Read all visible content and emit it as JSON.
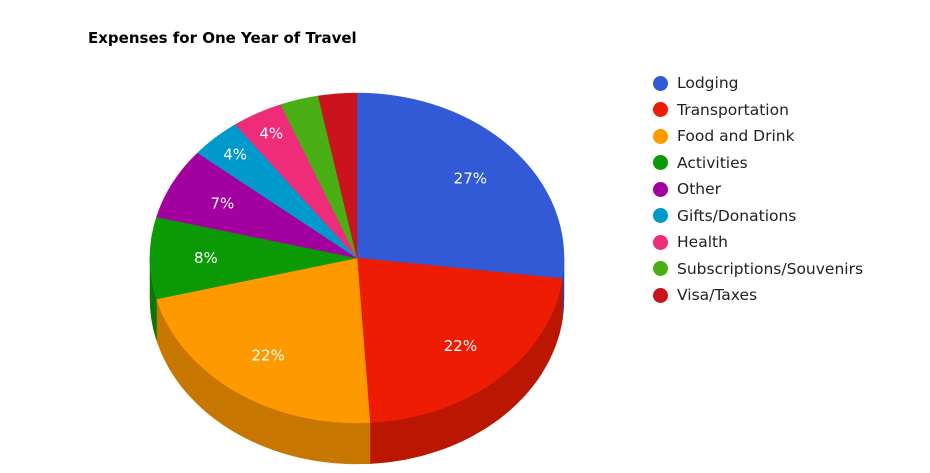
{
  "chart_data": {
    "type": "pie",
    "title": "Expenses for One Year of Travel",
    "legend_position": "right",
    "three_d": true,
    "slices": [
      {
        "label": "Lodging",
        "value": 27,
        "value_label": "27%",
        "color": "#3259D6"
      },
      {
        "label": "Transportation",
        "value": 22,
        "value_label": "22%",
        "color": "#EE1C03"
      },
      {
        "label": "Food and Drink",
        "value": 22,
        "value_label": "22%",
        "color": "#FF9900"
      },
      {
        "label": "Activities",
        "value": 8,
        "value_label": "8%",
        "color": "#0B9A05"
      },
      {
        "label": "Other",
        "value": 7,
        "value_label": "7%",
        "color": "#A2009F"
      },
      {
        "label": "Gifts/Donations",
        "value": 4,
        "value_label": "4%",
        "color": "#0099CC"
      },
      {
        "label": "Health",
        "value": 4,
        "value_label": "4%",
        "color": "#EE2C7A"
      },
      {
        "label": "Subscriptions/Souvenirs",
        "value": 3,
        "value_label": "",
        "color": "#4AAF14"
      },
      {
        "label": "Visa/Taxes",
        "value": 3,
        "value_label": "",
        "color": "#C9131D"
      }
    ]
  }
}
